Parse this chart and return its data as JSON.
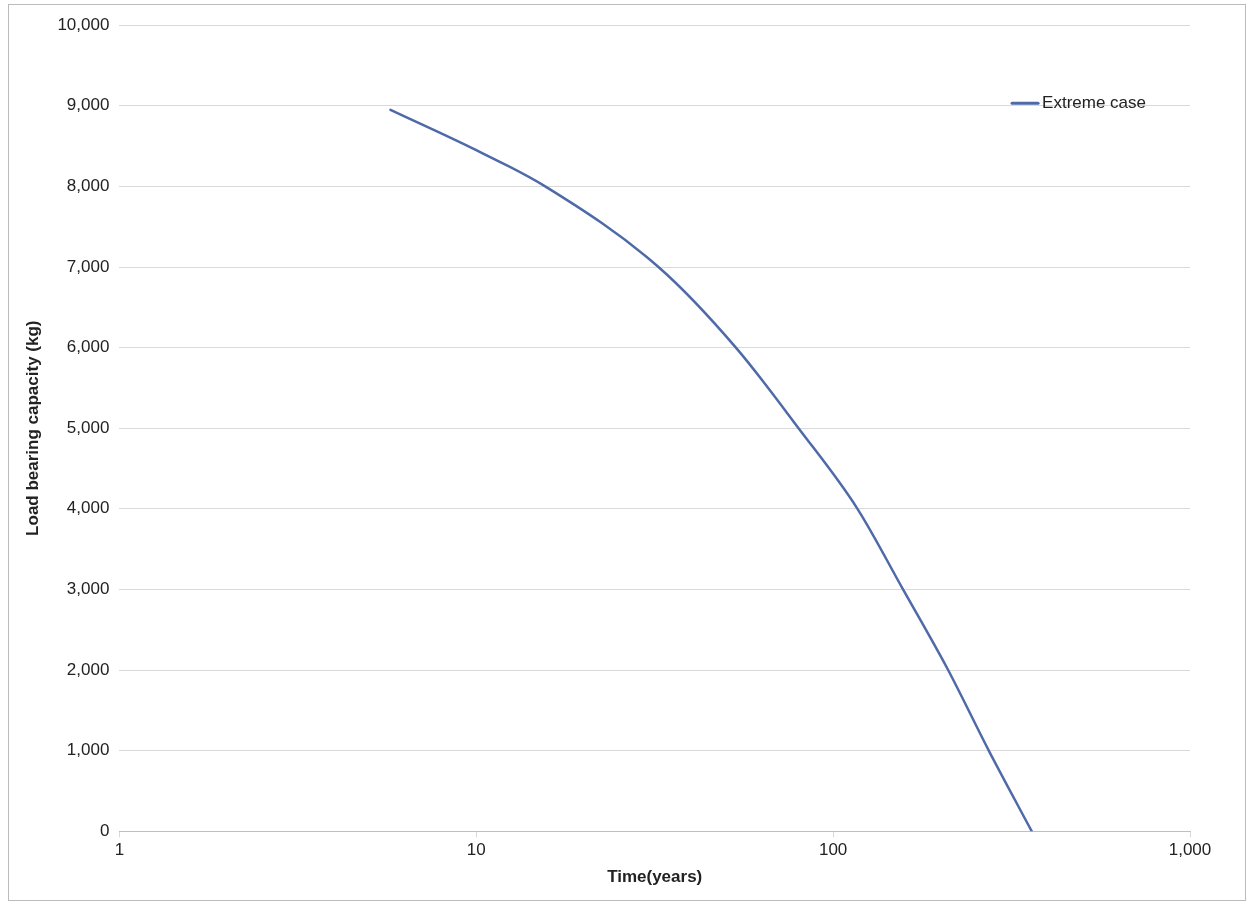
{
  "chart_data": {
    "type": "line",
    "xlabel": "Time(years)",
    "ylabel": "Load bearing capacity (kg)",
    "log": "x",
    "grid": "y",
    "legend": "top right",
    "marker": "none",
    "line_style": "solid",
    "xlim": [
      1,
      1000
    ],
    "xticks": [
      1,
      10,
      100,
      {
        "value": 1000,
        "label": "1,000"
      }
    ],
    "ylim": [
      0,
      10000
    ],
    "yticks": [
      0,
      {
        "value": 1000,
        "label": "1,000"
      },
      {
        "value": 2000,
        "label": "2,000"
      },
      {
        "value": 3000,
        "label": "3,000"
      },
      {
        "value": 4000,
        "label": "4,000"
      },
      {
        "value": 5000,
        "label": "5,000"
      },
      {
        "value": 6000,
        "label": "6,000"
      },
      {
        "value": 7000,
        "label": "7,000"
      },
      {
        "value": 8000,
        "label": "8,000"
      },
      {
        "value": 9000,
        "label": "9,000"
      },
      {
        "value": 10000,
        "label": "10,000"
      }
    ],
    "series": [
      {
        "name": "Extreme case",
        "color": "#4f6aa8",
        "x": [
          5.75,
          10,
          15.6,
          32.4,
          53.4,
          80,
          117,
          157,
          210,
          273,
          360
        ],
        "values": [
          8950,
          8450,
          8000,
          7000,
          6000,
          5000,
          4000,
          3000,
          2000,
          1000,
          0
        ]
      }
    ]
  }
}
